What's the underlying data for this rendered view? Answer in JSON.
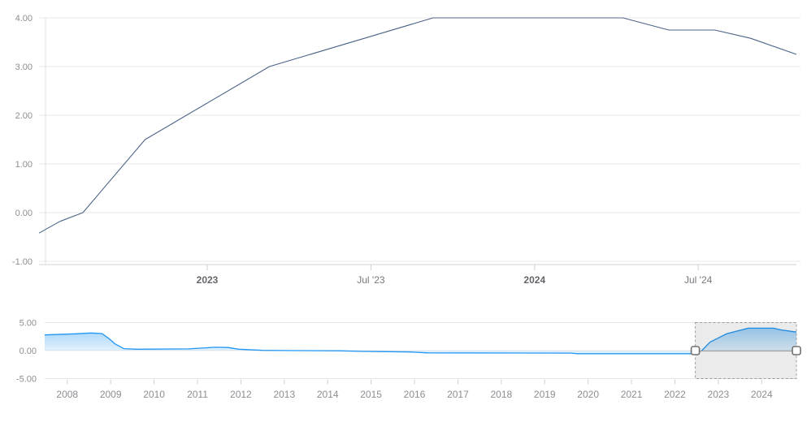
{
  "colors": {
    "background": "#ffffff",
    "main_line": "#4d6488",
    "nav_line": "#2196f3",
    "grid": "#e8e8e8",
    "axis_line": "#e0e0e0",
    "tick": "#cfcfcf",
    "label": "#8b8e92",
    "label_bold": "#63666b",
    "label_regular": "#75787d",
    "brush_border": "#9e9e9e",
    "brush_fill": "rgba(0,0,0,0.08)",
    "handle_fill": "#ffffff",
    "handle_stroke": "#707070",
    "connector": "#a3a3a3"
  },
  "chart_data": [
    {
      "id": "main",
      "type": "line",
      "title": "",
      "xlabel": "",
      "ylabel": "",
      "grid": "horizontal",
      "legend": "none",
      "xlim": [
        2022.486,
        2024.8
      ],
      "ylim": [
        -1.083,
        4.233
      ],
      "y_ticks": [
        {
          "label": "4.00",
          "v": 4
        },
        {
          "label": "3.00",
          "v": 3
        },
        {
          "label": "2.00",
          "v": 2
        },
        {
          "label": "1.00",
          "v": 1
        },
        {
          "label": "0.00",
          "v": 0
        },
        {
          "label": "-1.00",
          "v": -1
        }
      ],
      "x_ticks": [
        {
          "label": "2023",
          "v": 2023.0,
          "bold": true
        },
        {
          "label": "Jul '23",
          "v": 2023.5,
          "bold": false
        },
        {
          "label": "2024",
          "v": 2024.0,
          "bold": true
        },
        {
          "label": "Jul '24",
          "v": 2024.5,
          "bold": false
        }
      ],
      "series": [
        {
          "points": [
            [
              2022.486,
              -0.42
            ],
            [
              2022.55,
              -0.18
            ],
            [
              2022.62,
              0.0
            ],
            [
              2022.81,
              1.5
            ],
            [
              2023.19,
              3.0
            ],
            [
              2023.69,
              4.0
            ],
            [
              2024.27,
              4.0
            ],
            [
              2024.41,
              3.75
            ],
            [
              2024.55,
              3.75
            ],
            [
              2024.66,
              3.58
            ],
            [
              2024.8,
              3.25
            ]
          ]
        }
      ]
    },
    {
      "id": "navigator",
      "type": "area",
      "title": "",
      "xlabel": "",
      "ylabel": "",
      "grid": "horizontal",
      "legend": "none",
      "xlim": [
        2007.48,
        2024.8
      ],
      "ylim": [
        -5,
        5
      ],
      "y_ticks": [
        {
          "label": "5.00",
          "v": 5
        },
        {
          "label": "0.00",
          "v": 0
        },
        {
          "label": "-5.00",
          "v": -5
        }
      ],
      "x_ticks": [
        {
          "label": "2008",
          "v": 2008
        },
        {
          "label": "2009",
          "v": 2009
        },
        {
          "label": "2010",
          "v": 2010
        },
        {
          "label": "2011",
          "v": 2011
        },
        {
          "label": "2012",
          "v": 2012
        },
        {
          "label": "2013",
          "v": 2013
        },
        {
          "label": "2014",
          "v": 2014
        },
        {
          "label": "2015",
          "v": 2015
        },
        {
          "label": "2016",
          "v": 2016
        },
        {
          "label": "2017",
          "v": 2017
        },
        {
          "label": "2018",
          "v": 2018
        },
        {
          "label": "2019",
          "v": 2019
        },
        {
          "label": "2020",
          "v": 2020
        },
        {
          "label": "2021",
          "v": 2021
        },
        {
          "label": "2022",
          "v": 2022
        },
        {
          "label": "2023",
          "v": 2023
        },
        {
          "label": "2024",
          "v": 2024
        }
      ],
      "series": [
        {
          "points": [
            [
              2007.48,
              2.8
            ],
            [
              2008.2,
              3.0
            ],
            [
              2008.55,
              3.15
            ],
            [
              2008.8,
              3.05
            ],
            [
              2008.95,
              2.2
            ],
            [
              2009.1,
              1.2
            ],
            [
              2009.3,
              0.35
            ],
            [
              2009.6,
              0.25
            ],
            [
              2010.8,
              0.3
            ],
            [
              2011.4,
              0.6
            ],
            [
              2011.7,
              0.55
            ],
            [
              2011.95,
              0.25
            ],
            [
              2012.5,
              0.05
            ],
            [
              2013.2,
              0.0
            ],
            [
              2014.3,
              -0.05
            ],
            [
              2014.8,
              -0.15
            ],
            [
              2015.9,
              -0.25
            ],
            [
              2016.3,
              -0.4
            ],
            [
              2019.6,
              -0.45
            ],
            [
              2019.75,
              -0.55
            ],
            [
              2022.45,
              -0.55
            ],
            [
              2022.62,
              0.0
            ],
            [
              2022.81,
              1.5
            ],
            [
              2023.19,
              3.0
            ],
            [
              2023.69,
              4.0
            ],
            [
              2024.27,
              4.0
            ],
            [
              2024.45,
              3.7
            ],
            [
              2024.8,
              3.3
            ]
          ]
        }
      ],
      "selection": {
        "from": 2022.47,
        "to": 2024.8
      }
    }
  ]
}
